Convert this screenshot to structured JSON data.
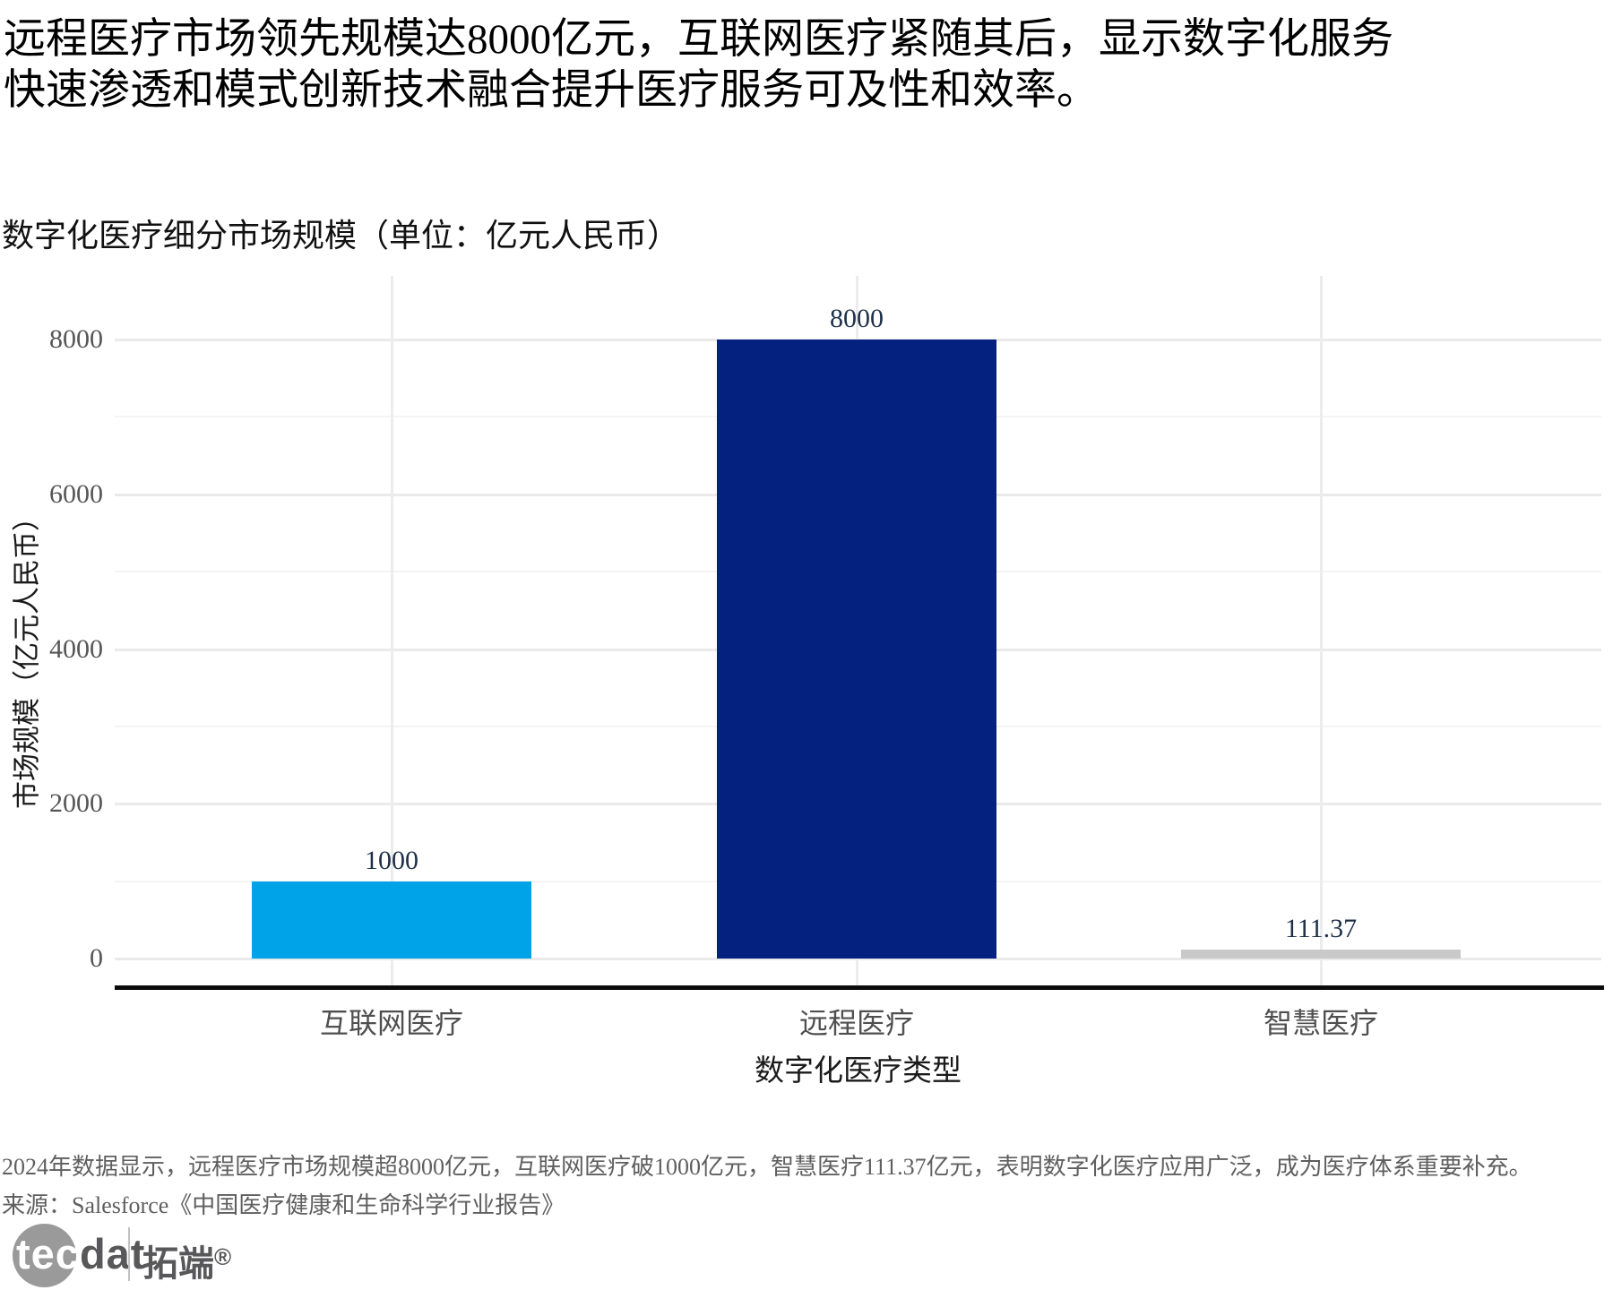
{
  "header": {
    "title_lines": [
      "远程医疗市场领先规模达8000亿元，互联网医疗紧随其后，显示数字化服务",
      "快速渗透和模式创新技术融合提升医疗服务可及性和效率。"
    ]
  },
  "chart_data": {
    "type": "bar",
    "title": "数字化医疗细分市场规模（单位：亿元人民币）",
    "categories": [
      "互联网医疗",
      "远程医疗",
      "智慧医疗"
    ],
    "values": [
      1000,
      8000,
      111.37
    ],
    "value_labels": [
      "1000",
      "8000",
      "111.37"
    ],
    "bar_colors": [
      "#00a2e8",
      "#05217f",
      "#c9c9c9"
    ],
    "xlabel": "数字化医疗类型",
    "ylabel": "市场规模（亿元人民币）",
    "ylim": [
      0,
      8000
    ],
    "yticks": [
      0,
      2000,
      4000,
      6000,
      8000
    ],
    "minor_gridlines": [
      1000,
      3000,
      5000,
      7000
    ],
    "grid": true,
    "legend": false,
    "colors": {
      "major_grid": "#eaeaea",
      "minor_grid": "#f4f4f4",
      "axis_line": "#0b0b0b",
      "tick_label": "#565656",
      "value_label": "#1e3048"
    }
  },
  "footer": {
    "note": "2024年数据显示，远程医疗市场规模超8000亿元，互联网医疗破1000亿元，智慧医疗111.37亿元，表明数字化医疗应用广泛，成为医疗体系重要补充。",
    "source": "来源：Salesforce《中国医疗健康和生命科学行业报告》"
  },
  "logo": {
    "brand_tec": "tec",
    "brand_dat": "dat",
    "brand_cn": "拓端",
    "reg_mark": "®"
  }
}
